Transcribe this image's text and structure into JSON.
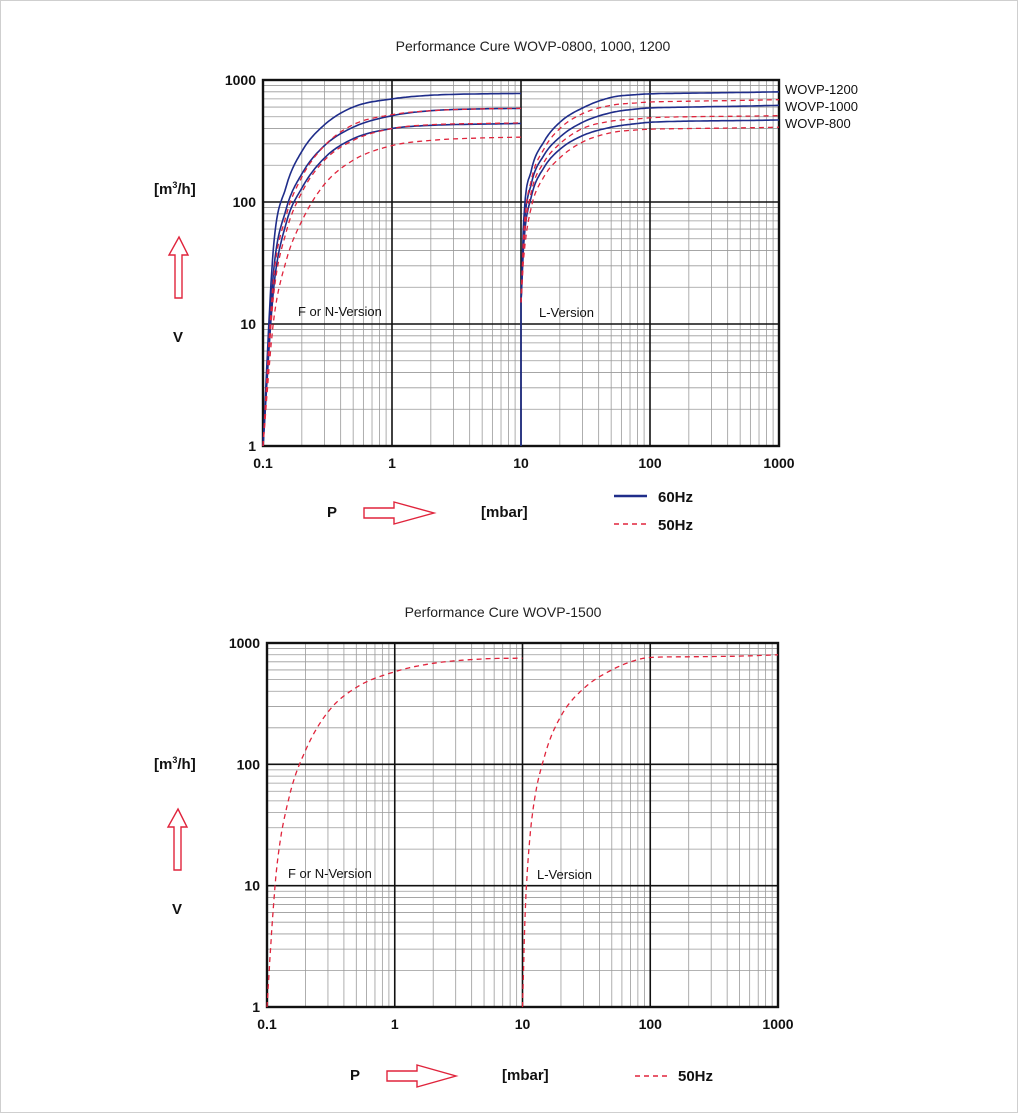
{
  "colors": {
    "hz60": "#1f2d8a",
    "hz50": "#e0243c",
    "arrow": "#e0243c",
    "grid": "#9a9a9a",
    "major": "#111111"
  },
  "chart_data": [
    {
      "type": "line",
      "title": "Performance Cure WOVP-0800, 1000, 1200",
      "xscale": "log",
      "yscale": "log",
      "xlim": [
        0.1,
        1000
      ],
      "ylim": [
        1,
        1000
      ],
      "xticks": [
        "0.1",
        "1",
        "10",
        "100",
        "1000"
      ],
      "yticks": [
        "1",
        "10",
        "100",
        "1000"
      ],
      "xlabel": "P",
      "xunit": "[mbar]",
      "ylabel": "V",
      "yunit": "[m³/h]",
      "grid": true,
      "legend": {
        "placement": "bottom",
        "entries": [
          {
            "label": "60Hz",
            "style": "solid"
          },
          {
            "label": "50Hz",
            "style": "dashed"
          }
        ]
      },
      "region_labels": [
        "F or N-Version",
        "L-Version"
      ],
      "curve_labels": [
        "WOVP-1200",
        "WOVP-1000",
        "WOVP-800"
      ],
      "series": [
        {
          "hz": "60Hz",
          "model": "WOVP-1200",
          "version": "F/N",
          "x": [
            0.1,
            0.12,
            0.15,
            0.2,
            0.3,
            0.5,
            1,
            2,
            5,
            10
          ],
          "y": [
            1,
            40,
            130,
            260,
            430,
            600,
            700,
            750,
            770,
            775
          ]
        },
        {
          "hz": "60Hz",
          "model": "WOVP-1000",
          "version": "F/N",
          "x": [
            0.1,
            0.12,
            0.15,
            0.2,
            0.3,
            0.5,
            1,
            2,
            5,
            10
          ],
          "y": [
            1,
            25,
            85,
            170,
            290,
            410,
            510,
            560,
            580,
            585
          ]
        },
        {
          "hz": "60Hz",
          "model": "WOVP-800",
          "version": "F/N",
          "x": [
            0.1,
            0.12,
            0.15,
            0.2,
            0.3,
            0.5,
            1,
            2,
            5,
            10
          ],
          "y": [
            1,
            18,
            65,
            130,
            230,
            330,
            400,
            425,
            435,
            440
          ]
        },
        {
          "hz": "50Hz",
          "model": "WOVP-1200",
          "version": "F/N",
          "x": [
            0.1,
            0.12,
            0.15,
            0.2,
            0.3,
            0.5,
            1,
            2,
            5,
            10
          ],
          "y": [
            1,
            22,
            75,
            160,
            290,
            430,
            520,
            560,
            580,
            585
          ]
        },
        {
          "hz": "50Hz",
          "model": "WOVP-1000",
          "version": "F/N",
          "x": [
            0.1,
            0.12,
            0.15,
            0.2,
            0.3,
            0.5,
            1,
            2,
            5,
            10
          ],
          "y": [
            1,
            16,
            55,
            120,
            220,
            320,
            400,
            430,
            440,
            445
          ]
        },
        {
          "hz": "50Hz",
          "model": "WOVP-800",
          "version": "F/N",
          "x": [
            0.1,
            0.12,
            0.15,
            0.2,
            0.3,
            0.5,
            1,
            2,
            5,
            10
          ],
          "y": [
            1,
            10,
            32,
            70,
            140,
            220,
            290,
            320,
            335,
            340
          ]
        },
        {
          "hz": "60Hz",
          "model": "WOVP-1200",
          "version": "L",
          "x": [
            10,
            10.5,
            12,
            15,
            20,
            30,
            50,
            80,
            100,
            200,
            500,
            1000
          ],
          "y": [
            15,
            70,
            180,
            310,
            450,
            590,
            720,
            760,
            770,
            780,
            790,
            800
          ]
        },
        {
          "hz": "60Hz",
          "model": "WOVP-1000",
          "version": "L",
          "x": [
            10,
            10.5,
            12,
            15,
            20,
            30,
            50,
            80,
            100,
            200,
            500,
            1000
          ],
          "y": [
            15,
            55,
            140,
            240,
            340,
            450,
            540,
            580,
            590,
            600,
            610,
            620
          ]
        },
        {
          "hz": "60Hz",
          "model": "WOVP-800",
          "version": "L",
          "x": [
            10,
            10.5,
            12,
            15,
            20,
            30,
            50,
            80,
            100,
            200,
            500,
            1000
          ],
          "y": [
            15,
            45,
            110,
            190,
            270,
            350,
            410,
            440,
            450,
            460,
            465,
            470
          ]
        },
        {
          "hz": "50Hz",
          "model": "WOVP-1200",
          "version": "L",
          "x": [
            10,
            10.5,
            12,
            15,
            20,
            30,
            50,
            80,
            100,
            200,
            500,
            1000
          ],
          "y": [
            15,
            55,
            150,
            270,
            400,
            530,
            620,
            650,
            660,
            670,
            680,
            690
          ]
        },
        {
          "hz": "50Hz",
          "model": "WOVP-1000",
          "version": "L",
          "x": [
            10,
            10.5,
            12,
            15,
            20,
            30,
            50,
            80,
            100,
            200,
            500,
            1000
          ],
          "y": [
            15,
            45,
            120,
            210,
            300,
            400,
            460,
            480,
            490,
            500,
            505,
            510
          ]
        },
        {
          "hz": "50Hz",
          "model": "WOVP-800",
          "version": "L",
          "x": [
            10,
            10.5,
            12,
            15,
            20,
            30,
            50,
            80,
            100,
            200,
            500,
            1000
          ],
          "y": [
            15,
            35,
            90,
            160,
            230,
            310,
            370,
            390,
            395,
            400,
            405,
            410
          ]
        }
      ]
    },
    {
      "type": "line",
      "title": "Performance Cure WOVP-1500",
      "xscale": "log",
      "yscale": "log",
      "xlim": [
        0.1,
        1000
      ],
      "ylim": [
        1,
        1000
      ],
      "xticks": [
        "0.1",
        "1",
        "10",
        "100",
        "1000"
      ],
      "yticks": [
        "1",
        "10",
        "100",
        "1000"
      ],
      "xlabel": "P",
      "xunit": "[mbar]",
      "ylabel": "V",
      "yunit": "[m³/h]",
      "grid": true,
      "legend": {
        "placement": "bottom",
        "entries": [
          {
            "label": "50Hz",
            "style": "dashed"
          }
        ]
      },
      "region_labels": [
        "F or N-Version",
        "L-Version"
      ],
      "series": [
        {
          "hz": "50Hz",
          "version": "F/N",
          "x": [
            0.1,
            0.11,
            0.12,
            0.15,
            0.2,
            0.3,
            0.5,
            1,
            2,
            5,
            10
          ],
          "y": [
            1,
            5,
            15,
            55,
            130,
            270,
            430,
            580,
            680,
            740,
            750
          ]
        },
        {
          "hz": "50Hz",
          "version": "L",
          "x": [
            10,
            10.5,
            11,
            12,
            15,
            20,
            30,
            50,
            80,
            100,
            200,
            500,
            1000
          ],
          "y": [
            1,
            6,
            15,
            40,
            120,
            250,
            420,
            600,
            730,
            760,
            770,
            780,
            800
          ]
        }
      ]
    }
  ]
}
